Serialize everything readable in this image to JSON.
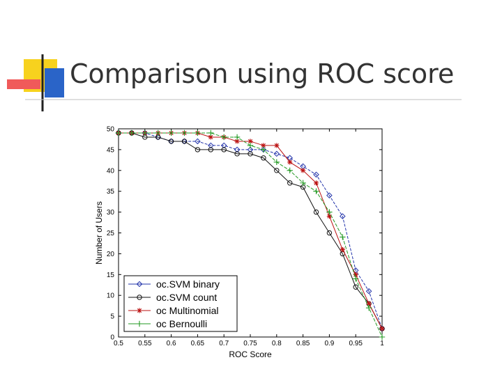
{
  "slide": {
    "title": "Comparison using ROC score",
    "accent_colors": {
      "yellow": "#f7d21e",
      "red": "#f05a5a",
      "blue": "#2a64c8",
      "line": "#222222"
    }
  },
  "chart_data": {
    "type": "line",
    "title": "",
    "xlabel": "ROC Score",
    "ylabel": "Number of Users",
    "xlim": [
      0.5,
      1.0
    ],
    "ylim": [
      0,
      50
    ],
    "xticks": [
      "0.5",
      "0.55",
      "0.6",
      "0.65",
      "0.7",
      "0.75",
      "0.8",
      "0.85",
      "0.9",
      "0.95",
      "1"
    ],
    "yticks": [
      "0",
      "5",
      "10",
      "15",
      "20",
      "25",
      "30",
      "35",
      "40",
      "45",
      "50"
    ],
    "grid": false,
    "legend": "bottom-left",
    "x": [
      0.5,
      0.525,
      0.55,
      0.575,
      0.6,
      0.625,
      0.65,
      0.675,
      0.7,
      0.725,
      0.75,
      0.775,
      0.8,
      0.825,
      0.85,
      0.875,
      0.9,
      0.925,
      0.95,
      0.975,
      1.0
    ],
    "series": [
      {
        "name": "oc.SVM binary",
        "color": "#2233aa",
        "marker": "diamond",
        "values": [
          49,
          49,
          49,
          48,
          47,
          47,
          47,
          46,
          46,
          45,
          45,
          45,
          44,
          43,
          41,
          39,
          34,
          29,
          16,
          11,
          2
        ]
      },
      {
        "name": "oc.SVM count",
        "color": "#111111",
        "marker": "circle",
        "values": [
          49,
          49,
          48,
          48,
          47,
          47,
          45,
          45,
          45,
          44,
          44,
          43,
          40,
          37,
          36,
          30,
          25,
          20,
          12,
          8,
          2
        ]
      },
      {
        "name": "oc Multinomial",
        "color": "#bb1111",
        "marker": "asterisk",
        "values": [
          49,
          49,
          49,
          49,
          49,
          49,
          49,
          48,
          48,
          47,
          47,
          46,
          46,
          42,
          40,
          37,
          29,
          21,
          15,
          8,
          2
        ]
      },
      {
        "name": "oc Bernoulli",
        "color": "#229922",
        "marker": "plus",
        "values": [
          49,
          49,
          49,
          49,
          49,
          49,
          49,
          49,
          48,
          48,
          46,
          45,
          42,
          40,
          37,
          35,
          30,
          24,
          14,
          7,
          0
        ]
      }
    ]
  }
}
